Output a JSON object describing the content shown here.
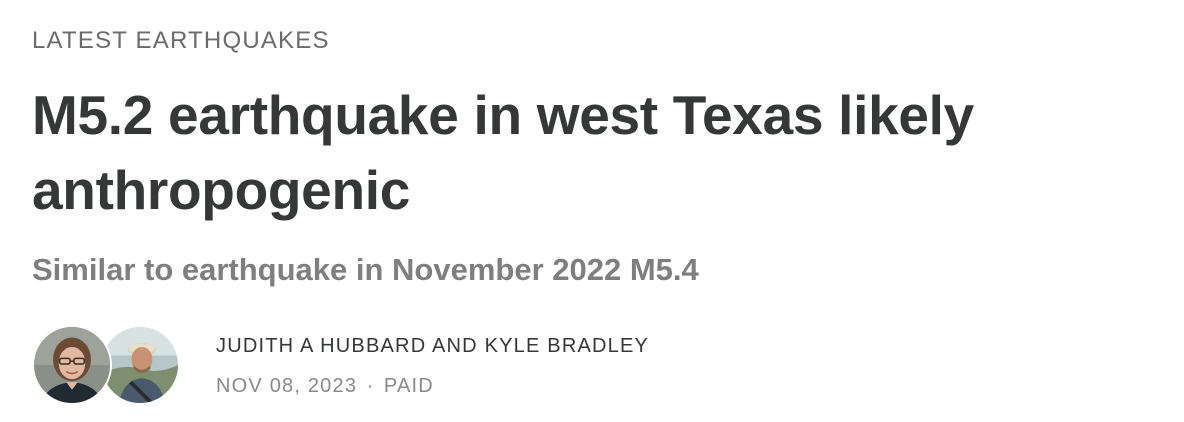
{
  "section": {
    "label": "LATEST EARTHQUAKES"
  },
  "post": {
    "title": "M5.2 earthquake in west Texas likely anthropogenic",
    "subtitle": "Similar to earthquake in November 2022 M5.4"
  },
  "byline": {
    "authors": "JUDITH A HUBBARD AND KYLE BRADLEY",
    "date": "NOV 08, 2023",
    "separator": "∙",
    "access": "PAID"
  },
  "colors": {
    "title": "#363737",
    "subtitle": "#7f7f7f",
    "label": "#6b6b6b",
    "meta": "#8a8a8a"
  },
  "icons": {
    "avatar_1": "author-avatar-judith",
    "avatar_2": "author-avatar-kyle"
  }
}
